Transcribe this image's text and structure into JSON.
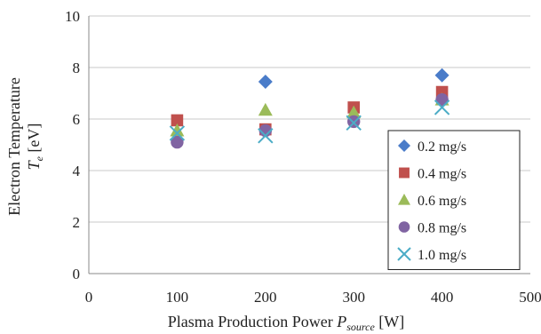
{
  "chart_data": {
    "type": "scatter",
    "xlabel": {
      "main": "Plasma Production Power ",
      "symbol": "P",
      "subscript": "source",
      "unit": " [W]"
    },
    "ylabel": {
      "line1": "Electron Temperature",
      "symbol": "T",
      "subscript": "e",
      "unit": " [eV]"
    },
    "xlim": [
      0,
      500
    ],
    "ylim": [
      0,
      10
    ],
    "xticks": [
      0,
      100,
      200,
      300,
      400,
      500
    ],
    "yticks": [
      0,
      2,
      4,
      6,
      8,
      10
    ],
    "grid": "horizontal",
    "legend_position": "bottom-right",
    "series": [
      {
        "name": "0.2 mg/s",
        "marker": "diamond",
        "color": "#4a7cc9",
        "x": [
          200,
          400
        ],
        "y": [
          7.45,
          7.7
        ]
      },
      {
        "name": "0.4 mg/s",
        "marker": "square",
        "color": "#c0504d",
        "x": [
          100,
          200,
          300,
          400
        ],
        "y": [
          5.95,
          5.6,
          6.45,
          7.05
        ]
      },
      {
        "name": "0.6 mg/s",
        "marker": "triangle",
        "color": "#9bbb59",
        "x": [
          100,
          200,
          300,
          400
        ],
        "y": [
          5.55,
          6.35,
          6.25,
          6.75
        ]
      },
      {
        "name": "0.8 mg/s",
        "marker": "circle",
        "color": "#8064a2",
        "x": [
          100,
          200,
          300,
          400
        ],
        "y": [
          5.1,
          5.55,
          5.9,
          6.75
        ]
      },
      {
        "name": "1.0 mg/s",
        "marker": "x",
        "color": "#4bacc6",
        "x": [
          100,
          200,
          300,
          400
        ],
        "y": [
          5.45,
          5.35,
          5.85,
          6.45
        ]
      }
    ]
  }
}
